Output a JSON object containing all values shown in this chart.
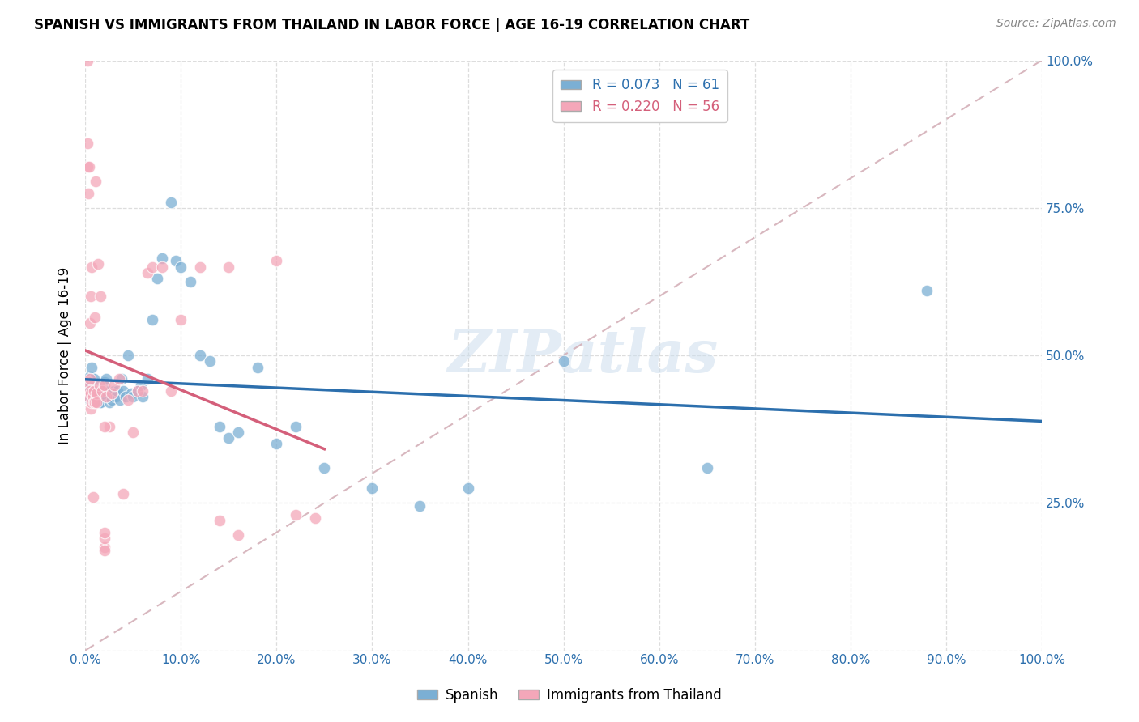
{
  "title": "SPANISH VS IMMIGRANTS FROM THAILAND IN LABOR FORCE | AGE 16-19 CORRELATION CHART",
  "source": "Source: ZipAtlas.com",
  "ylabel": "In Labor Force | Age 16-19",
  "xlim": [
    0.0,
    1.0
  ],
  "ylim": [
    0.0,
    1.0
  ],
  "xticks": [
    0.0,
    0.1,
    0.2,
    0.3,
    0.4,
    0.5,
    0.6,
    0.7,
    0.8,
    0.9,
    1.0
  ],
  "yticks": [
    0.0,
    0.25,
    0.5,
    0.75,
    1.0
  ],
  "xticklabels": [
    "0.0%",
    "10.0%",
    "20.0%",
    "30.0%",
    "40.0%",
    "50.0%",
    "60.0%",
    "70.0%",
    "80.0%",
    "90.0%",
    "100.0%"
  ],
  "yticklabels": [
    "",
    "25.0%",
    "50.0%",
    "75.0%",
    "100.0%"
  ],
  "background_color": "#ffffff",
  "grid_color": "#dddddd",
  "blue_color": "#7bafd4",
  "pink_color": "#f4a7b9",
  "blue_line_color": "#2c6fad",
  "pink_line_color": "#d45f7a",
  "diagonal_color": "#d4b0b8",
  "R_blue": 0.073,
  "N_blue": 61,
  "R_pink": 0.22,
  "N_pink": 56,
  "legend_label_blue": "Spanish",
  "legend_label_pink": "Immigrants from Thailand",
  "watermark": "ZIPatlas",
  "blue_x": [
    0.005,
    0.005,
    0.005,
    0.005,
    0.005,
    0.007,
    0.009,
    0.009,
    0.009,
    0.012,
    0.013,
    0.013,
    0.015,
    0.015,
    0.016,
    0.018,
    0.019,
    0.02,
    0.021,
    0.022,
    0.023,
    0.025,
    0.025,
    0.026,
    0.028,
    0.03,
    0.032,
    0.034,
    0.036,
    0.038,
    0.04,
    0.042,
    0.045,
    0.048,
    0.05,
    0.055,
    0.058,
    0.06,
    0.065,
    0.07,
    0.075,
    0.08,
    0.09,
    0.095,
    0.1,
    0.11,
    0.12,
    0.13,
    0.14,
    0.15,
    0.16,
    0.18,
    0.2,
    0.22,
    0.25,
    0.3,
    0.35,
    0.4,
    0.5,
    0.65,
    0.88
  ],
  "blue_y": [
    0.425,
    0.435,
    0.445,
    0.455,
    0.465,
    0.48,
    0.43,
    0.445,
    0.46,
    0.43,
    0.44,
    0.42,
    0.42,
    0.44,
    0.42,
    0.435,
    0.445,
    0.455,
    0.44,
    0.46,
    0.43,
    0.44,
    0.42,
    0.43,
    0.425,
    0.44,
    0.43,
    0.44,
    0.425,
    0.46,
    0.44,
    0.43,
    0.5,
    0.435,
    0.43,
    0.44,
    0.45,
    0.43,
    0.46,
    0.56,
    0.63,
    0.665,
    0.76,
    0.66,
    0.65,
    0.625,
    0.5,
    0.49,
    0.38,
    0.36,
    0.37,
    0.48,
    0.35,
    0.38,
    0.31,
    0.275,
    0.245,
    0.275,
    0.49,
    0.31,
    0.61
  ],
  "pink_x": [
    0.002,
    0.002,
    0.002,
    0.003,
    0.003,
    0.003,
    0.004,
    0.005,
    0.005,
    0.005,
    0.006,
    0.006,
    0.006,
    0.007,
    0.007,
    0.008,
    0.008,
    0.009,
    0.009,
    0.01,
    0.01,
    0.011,
    0.012,
    0.012,
    0.013,
    0.015,
    0.016,
    0.018,
    0.02,
    0.022,
    0.025,
    0.028,
    0.03,
    0.035,
    0.04,
    0.045,
    0.05,
    0.055,
    0.06,
    0.065,
    0.07,
    0.08,
    0.09,
    0.1,
    0.12,
    0.14,
    0.15,
    0.16,
    0.2,
    0.22,
    0.24,
    0.02,
    0.02,
    0.02,
    0.02,
    0.02
  ],
  "pink_y": [
    0.82,
    0.86,
    1.0,
    0.775,
    0.455,
    0.43,
    0.82,
    0.46,
    0.555,
    0.44,
    0.6,
    0.435,
    0.41,
    0.65,
    0.42,
    0.43,
    0.26,
    0.42,
    0.44,
    0.565,
    0.42,
    0.795,
    0.435,
    0.42,
    0.655,
    0.45,
    0.6,
    0.44,
    0.45,
    0.43,
    0.38,
    0.435,
    0.45,
    0.46,
    0.265,
    0.425,
    0.37,
    0.44,
    0.44,
    0.64,
    0.65,
    0.65,
    0.44,
    0.56,
    0.65,
    0.22,
    0.65,
    0.195,
    0.66,
    0.23,
    0.225,
    0.175,
    0.19,
    0.2,
    0.38,
    0.17
  ]
}
